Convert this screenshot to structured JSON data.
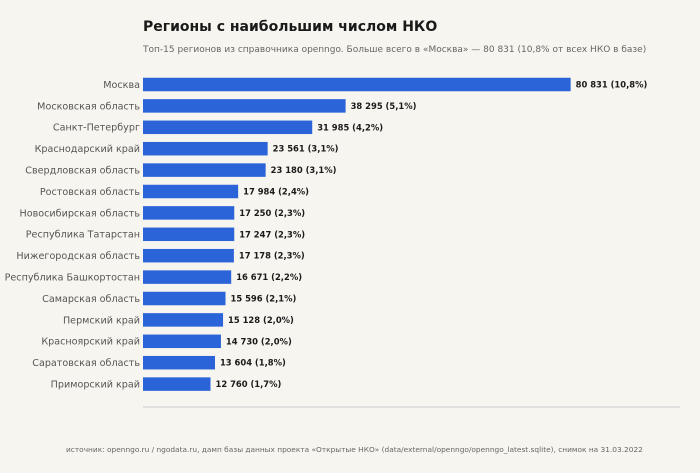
{
  "chart_data": {
    "type": "bar",
    "orientation": "horizontal",
    "title": "Регионы с наибольшим числом НКО",
    "subtitle": "Топ-15 регионов из справочника openngo. Больше всего в «Москва» — 80 831 (10,8% от всех НКО в базе)",
    "source": "источник: openngo.ru / ngodata.ru, дамп базы данных проекта «Открытые НКО» (data/external/openngo/openngo_latest.sqlite), снимок на 31.03.2022",
    "xlim": [
      0,
      101500
    ],
    "grid": false,
    "categories": [
      "Москва",
      "Московская область",
      "Санкт-Петербург",
      "Краснодарский край",
      "Свердловская область",
      "Ростовская область",
      "Новосибирская область",
      "Республика Татарстан",
      "Нижегородская область",
      "Республика Башкортостан",
      "Самарская область",
      "Пермский край",
      "Красноярский край",
      "Саратовская область",
      "Приморский край"
    ],
    "values": [
      80831,
      38295,
      31985,
      23561,
      23180,
      17984,
      17250,
      17247,
      17178,
      16671,
      15596,
      15128,
      14730,
      13604,
      12760
    ],
    "value_labels": [
      "80 831  (10,8%)",
      "38 295  (5,1%)",
      "31 985  (4,2%)",
      "23 561  (3,1%)",
      "23 180  (3,1%)",
      "17 984  (2,4%)",
      "17 250  (2,3%)",
      "17 247  (2,3%)",
      "17 178  (2,3%)",
      "16 671  (2,2%)",
      "15 596  (2,1%)",
      "15 128  (2,0%)",
      "14 730  (2,0%)",
      "13 604  (1,8%)",
      "12 760  (1,7%)"
    ],
    "colors": {
      "bar": "#2b63d9",
      "background": "#f7f5ef",
      "axis": "#cccccc"
    }
  }
}
